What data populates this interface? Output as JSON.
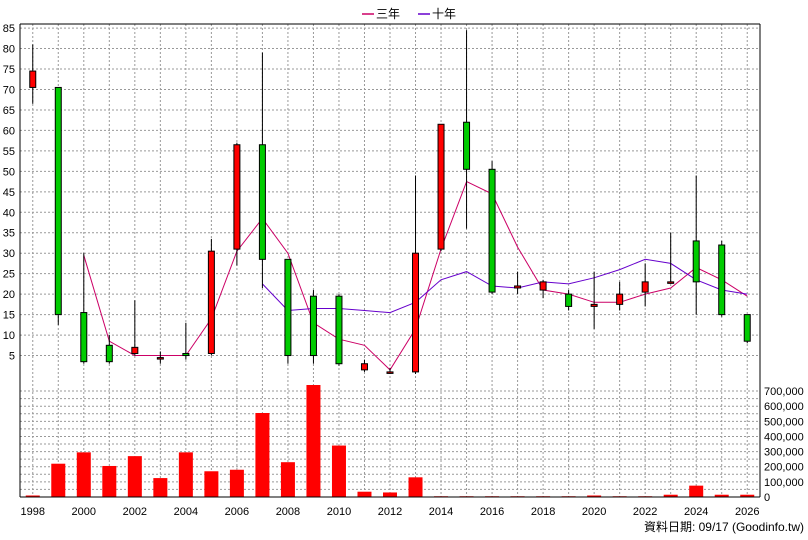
{
  "legend": [
    {
      "label": "三年",
      "color": "#cc0066"
    },
    {
      "label": "十年",
      "color": "#6600cc"
    }
  ],
  "footnote": "資料日期: 09/17  (Goodinfo.tw)",
  "colors": {
    "up_candle": "#ff0000",
    "down_candle": "#00cc00",
    "volume_bar": "#ff0000",
    "grid": "#999999",
    "ma3": "#cc0066",
    "ma10": "#6600cc"
  },
  "chart_data": [
    {
      "type": "candlestick",
      "title": "",
      "x": [
        1998,
        1999,
        2000,
        2001,
        2002,
        2003,
        2004,
        2005,
        2006,
        2007,
        2008,
        2009,
        2010,
        2011,
        2012,
        2013,
        2014,
        2015,
        2016,
        2017,
        2018,
        2019,
        2020,
        2021,
        2022,
        2023,
        2024,
        2025,
        2026
      ],
      "open": [
        70.5,
        70.5,
        15.5,
        7.5,
        5.5,
        4.5,
        5.5,
        5.5,
        31.0,
        56.5,
        28.5,
        19.5,
        19.5,
        1.5,
        1.0,
        1.0,
        31.0,
        62.0,
        50.5,
        21.5,
        21.0,
        20.0,
        17.0,
        17.5,
        20.5,
        23.0,
        33.0,
        32.0,
        15.0
      ],
      "close": [
        74.5,
        15.0,
        3.5,
        3.5,
        7.0,
        4.5,
        5.0,
        30.5,
        56.5,
        28.5,
        5.0,
        5.0,
        3.0,
        3.0,
        1.0,
        30.0,
        61.5,
        50.5,
        20.5,
        22.0,
        23.0,
        17.0,
        17.5,
        20.0,
        23.0,
        23.0,
        23.0,
        15.0,
        8.5
      ],
      "high": [
        81.0,
        70.5,
        30.0,
        10.0,
        18.5,
        6.0,
        13.0,
        33.5,
        57.0,
        79.0,
        28.5,
        21.0,
        20.0,
        4.0,
        2.0,
        49.0,
        61.5,
        84.5,
        52.5,
        25.5,
        23.5,
        21.0,
        25.5,
        23.0,
        27.5,
        35.0,
        49.0,
        33.0,
        15.0
      ],
      "low": [
        66.5,
        12.5,
        3.0,
        3.0,
        5.0,
        3.0,
        4.0,
        5.0,
        27.0,
        21.5,
        3.0,
        3.0,
        2.5,
        1.0,
        0.5,
        0.5,
        30.5,
        36.0,
        20.0,
        20.0,
        19.0,
        16.0,
        11.5,
        16.0,
        17.0,
        22.5,
        15.0,
        14.5,
        8.0
      ],
      "ma3": [
        null,
        null,
        29.5,
        8.5,
        5.0,
        5.0,
        5.0,
        14.0,
        30.5,
        38.5,
        30.0,
        13.0,
        9.0,
        7.5,
        1.5,
        11.5,
        31.0,
        47.5,
        44.5,
        31.5,
        21.0,
        20.0,
        18.0,
        18.0,
        20.0,
        21.5,
        26.5,
        23.5,
        19.5
      ],
      "ma10": [
        null,
        null,
        null,
        null,
        null,
        null,
        null,
        null,
        null,
        22.5,
        16.0,
        16.5,
        16.5,
        16.0,
        15.5,
        18.0,
        23.5,
        25.5,
        22.0,
        21.5,
        23.0,
        22.5,
        24.0,
        26.0,
        28.5,
        27.5,
        23.5,
        21.0,
        20.0
      ],
      "ylim": [
        0,
        86
      ],
      "yticks": [
        5,
        10,
        15,
        20,
        25,
        30,
        35,
        40,
        45,
        50,
        55,
        60,
        65,
        70,
        75,
        80,
        85
      ],
      "xticks": [
        1998,
        2000,
        2002,
        2004,
        2006,
        2008,
        2010,
        2012,
        2014,
        2016,
        2018,
        2020,
        2022,
        2024,
        2026
      ],
      "series": [
        {
          "name": "三年",
          "key": "ma3"
        },
        {
          "name": "十年",
          "key": "ma10"
        }
      ]
    },
    {
      "type": "bar",
      "title": "",
      "x": [
        1998,
        1999,
        2000,
        2001,
        2002,
        2003,
        2004,
        2005,
        2006,
        2007,
        2008,
        2009,
        2010,
        2011,
        2012,
        2013,
        2014,
        2015,
        2016,
        2017,
        2018,
        2019,
        2020,
        2021,
        2022,
        2023,
        2024,
        2025,
        2026
      ],
      "values": [
        10000,
        220000,
        295000,
        205000,
        270000,
        125000,
        295000,
        170000,
        180000,
        555000,
        230000,
        740000,
        340000,
        35000,
        30000,
        130000,
        5000,
        5000,
        5000,
        5000,
        5000,
        5000,
        10000,
        5000,
        5000,
        15000,
        75000,
        15000,
        15000
      ],
      "ylim": [
        0,
        740000
      ],
      "yticks": [
        0,
        100000,
        200000,
        300000,
        400000,
        500000,
        600000,
        700000
      ],
      "ytick_labels": [
        "0",
        "100,000",
        "200,000",
        "300,000",
        "400,000",
        "500,000",
        "600,000",
        "700,000"
      ]
    }
  ]
}
